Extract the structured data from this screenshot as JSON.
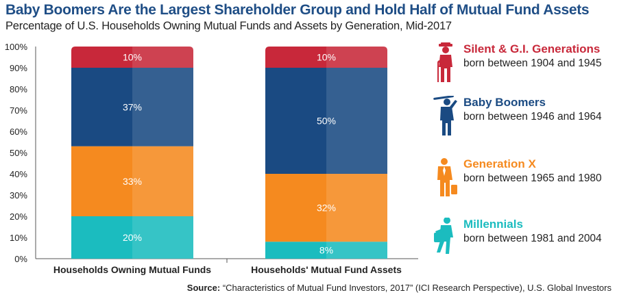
{
  "title": "Baby Boomers Are the Largest Shareholder Group and Hold Half of Mutual Fund Assets",
  "subtitle": "Percentage of U.S. Households Owning Mutual Funds and Assets by Generation, Mid-2017",
  "source_label": "Source:",
  "source_text": "“Characteristics of Mutual Fund Investors, 2017” (ICI Research Perspective), U.S. Global Investors",
  "colors": {
    "silent": "#c8283a",
    "boomers": "#1a4a82",
    "genx": "#f58a1f",
    "millennials": "#1bbcbf"
  },
  "chart_data": {
    "type": "bar",
    "stacked": true,
    "categories": [
      "Households Owning Mutual Funds",
      "Households' Mutual Fund Assets"
    ],
    "series": [
      {
        "name": "Millennials",
        "values": [
          20,
          8
        ],
        "labels": [
          "20%",
          "8%"
        ],
        "color": "#1bbcbf"
      },
      {
        "name": "Generation X",
        "values": [
          33,
          32
        ],
        "labels": [
          "33%",
          "32%"
        ],
        "color": "#f58a1f"
      },
      {
        "name": "Baby Boomers",
        "values": [
          37,
          50
        ],
        "labels": [
          "37%",
          "50%"
        ],
        "color": "#1a4a82"
      },
      {
        "name": "Silent & G.I. Generations",
        "values": [
          10,
          10
        ],
        "labels": [
          "10%",
          "10%"
        ],
        "color": "#c8283a"
      }
    ],
    "ylim": [
      0,
      100
    ],
    "yticks": [
      "0%",
      "10%",
      "20%",
      "30%",
      "40%",
      "50%",
      "60%",
      "70%",
      "80%",
      "90%",
      "100%"
    ],
    "grid": false,
    "legend_placement": "right"
  },
  "legend": [
    {
      "name": "Silent & G.I. Generations",
      "desc": "born between 1904 and 1945",
      "icon": "elderly-person-with-cane-icon",
      "color": "#c8283a"
    },
    {
      "name": "Baby Boomers",
      "desc": "born between 1946 and 1964",
      "icon": "golfer-icon",
      "color": "#1a4a82"
    },
    {
      "name": "Generation X",
      "desc": "born between 1965 and 1980",
      "icon": "businessman-with-briefcase-icon",
      "color": "#f58a1f"
    },
    {
      "name": "Millennials",
      "desc": "born between 1981 and 2004",
      "icon": "casual-walking-person-icon",
      "color": "#1bbcbf"
    }
  ]
}
